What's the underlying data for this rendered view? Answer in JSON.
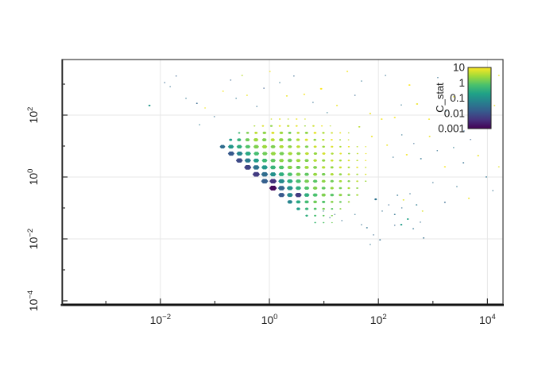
{
  "chart_data": {
    "type": "scatter",
    "subtype": "hexbin",
    "title": "",
    "xlabel": "",
    "ylabel": "",
    "x_scale": "log",
    "y_scale": "log",
    "coords": "log10",
    "grid": "major",
    "xlog_range": [
      -3.805,
      4.286
    ],
    "ylog_range": [
      -4.103,
      3.795
    ],
    "x_ticks": {
      "major_exponents": [
        -2,
        0,
        2,
        4
      ],
      "minor_exponents": [
        -3,
        -1,
        1,
        3
      ],
      "mantissa": "10"
    },
    "y_ticks": {
      "major_exponents": [
        2,
        0,
        -2,
        -4
      ],
      "minor_exponents": [
        3,
        1,
        -1,
        -3
      ],
      "mantissa": "10"
    },
    "legend": {
      "title": "C_stat",
      "labels": [
        "10",
        "1",
        "0.1",
        "0.01",
        "0.001"
      ],
      "scale": "log",
      "range": [
        0.001,
        10
      ],
      "position": "top-right-inside"
    },
    "colormap": {
      "name": "viridis",
      "stops": [
        "#440154",
        "#46327e",
        "#365c8d",
        "#277f8e",
        "#1fa187",
        "#4ac16d",
        "#a0da39",
        "#fde725"
      ]
    },
    "colors": {
      "grid": "#e7e7e7",
      "axis": "#3a3a3a",
      "tick": "#2f2f2f",
      "background": "#ffffff"
    },
    "hex_rows": [
      {
        "ly": 1.872,
        "lx0": 0.036,
        "dlx": 0.1545,
        "s": [
          1,
          1.2,
          1,
          1.2,
          1
        ],
        "c": [
          0.7,
          0.85,
          0.6,
          0.9,
          0.75
        ]
      },
      {
        "ly": 1.649,
        "lx0": -0.273,
        "dlx": 0.1545,
        "s": [
          1.2,
          1.5,
          1.8,
          1.5,
          1.8,
          1.5,
          1.2,
          1.5,
          1.2,
          1
        ],
        "c": [
          0.5,
          0.8,
          0.3,
          0.9,
          0.6,
          0.85,
          0.4,
          0.7,
          0.9,
          0.6
        ]
      },
      {
        "ly": 1.426,
        "lx0": -0.554,
        "dlx": 0.1545,
        "s": [
          1.5,
          2,
          2.2,
          2.5,
          2.2,
          2.5,
          2.2,
          2,
          2.2,
          2,
          1.8,
          1.5,
          1.2,
          1
        ],
        "c": [
          -0.3,
          0.2,
          0.6,
          0.3,
          0.8,
          0.4,
          0.1,
          0.6,
          0.3,
          0.85,
          0.5,
          0.7,
          0.9,
          0.6
        ]
      },
      {
        "ly": 1.203,
        "lx0": -0.711,
        "dlx": 0.1545,
        "s": [
          2.2,
          2.8,
          3,
          3.2,
          3,
          2.8,
          3,
          2.8,
          2.5,
          2.2,
          2,
          1.8,
          1.5,
          1.2,
          1
        ],
        "c": [
          -0.8,
          -0.4,
          0.1,
          0.4,
          0.2,
          0.6,
          0.3,
          0.1,
          0.5,
          0.8,
          0.3,
          0.6,
          0.9,
          0.4,
          0.7
        ]
      },
      {
        "ly": 0.979,
        "lx0": -0.86,
        "dlx": 0.1545,
        "s": [
          3.6,
          3.8,
          3.6,
          3.4,
          3.6,
          3.4,
          3.2,
          3,
          2.8,
          2.6,
          2.4,
          2.2,
          2,
          1.8,
          1.5,
          1.3,
          1.1,
          1
        ],
        "c": [
          -1.6,
          -0.9,
          -0.5,
          -0.1,
          0.2,
          0.4,
          0.2,
          0.5,
          0.3,
          0.6,
          0.2,
          0.7,
          0.4,
          0.8,
          0.5,
          0.9,
          0.6,
          0.8
        ]
      },
      {
        "ly": 0.756,
        "lx0": -0.701,
        "dlx": 0.1545,
        "s": [
          4.2,
          4,
          3.8,
          3.6,
          3.4,
          3.4,
          3.2,
          3,
          2.8,
          2.6,
          2.4,
          2.2,
          1.9,
          1.6,
          1.4,
          1.2,
          1
        ],
        "c": [
          -1.9,
          -1.2,
          -0.6,
          -0.2,
          0.1,
          0.35,
          0.15,
          0.45,
          0.25,
          0.6,
          0.35,
          0.75,
          0.5,
          0.85,
          0.3,
          0.65,
          0.9
        ]
      },
      {
        "ly": 0.533,
        "lx0": -0.551,
        "dlx": 0.1545,
        "s": [
          4.4,
          4.1,
          3.8,
          3.6,
          3.4,
          3.2,
          3.2,
          3,
          2.8,
          2.5,
          2.3,
          2,
          1.8,
          1.5,
          1.3,
          1.1
        ],
        "c": [
          -2.1,
          -1.4,
          -0.8,
          -0.3,
          0,
          0.3,
          0.1,
          0.4,
          0.2,
          0.55,
          0.3,
          0.7,
          0.45,
          0.8,
          0.6,
          0.9
        ]
      },
      {
        "ly": 0.31,
        "lx0": -0.397,
        "dlx": 0.1545,
        "s": [
          4.6,
          4.3,
          4,
          3.7,
          3.5,
          3.3,
          3.1,
          2.9,
          2.7,
          2.4,
          2.2,
          1.9,
          1.6,
          1.4,
          1.1
        ],
        "c": [
          -2.2,
          -1.5,
          -0.9,
          -0.4,
          -0.1,
          0.25,
          0.05,
          0.4,
          0.2,
          0.55,
          0.35,
          0.7,
          0.5,
          0.85,
          0.65
        ]
      },
      {
        "ly": 0.087,
        "lx0": -0.242,
        "dlx": 0.1545,
        "s": [
          4.7,
          4.4,
          4,
          3.7,
          3.4,
          3.2,
          3,
          2.8,
          2.5,
          2.3,
          2,
          1.7,
          1.4,
          1.2
        ],
        "c": [
          -2.3,
          -1.6,
          -1,
          -0.5,
          -0.15,
          0.2,
          0,
          0.35,
          0.15,
          0.5,
          0.3,
          0.65,
          0.45,
          0.8
        ]
      },
      {
        "ly": -0.136,
        "lx0": -0.087,
        "dlx": 0.1545,
        "s": [
          4.5,
          4.6,
          4.1,
          3.8,
          3.5,
          3.2,
          3,
          2.7,
          2.4,
          2.1,
          1.8,
          1.5,
          1.2
        ],
        "c": [
          -1.8,
          -2.4,
          -1.1,
          -0.55,
          -0.2,
          0.15,
          -0.05,
          0.3,
          0.1,
          0.45,
          0.25,
          0.6,
          0.4
        ]
      },
      {
        "ly": -0.359,
        "lx0": 0.067,
        "dlx": 0.1545,
        "s": [
          4.8,
          4.4,
          4,
          3.6,
          3.3,
          3,
          2.7,
          2.4,
          2.1,
          1.8,
          1.5
        ],
        "c": [
          -2.9,
          -1.7,
          -1,
          -0.5,
          -0.1,
          0.2,
          0,
          0.35,
          0.15,
          0.5,
          0.3
        ]
      },
      {
        "ly": -0.582,
        "lx0": 0.222,
        "dlx": 0.1545,
        "s": [
          4.2,
          3.9,
          4.3,
          3.5,
          3.2,
          2.9,
          2.6,
          2.3,
          2,
          1.6
        ],
        "c": [
          -1.9,
          -1.1,
          -2.3,
          -0.5,
          -0.15,
          0.2,
          -0.05,
          0.3,
          0.1,
          0.45
        ]
      },
      {
        "ly": -0.805,
        "lx0": 0.376,
        "dlx": 0.1545,
        "s": [
          3.4,
          3.1,
          2.9,
          2.6,
          2.3,
          2,
          1.7,
          1.4
        ],
        "c": [
          -1.2,
          -0.6,
          -0.25,
          0.1,
          -0.1,
          0.25,
          0.05,
          0.4
        ]
      },
      {
        "ly": -1.028,
        "lx0": 0.531,
        "dlx": 0.1545,
        "s": [
          2.6,
          2.4,
          2.1,
          1.9,
          1.6,
          1.3
        ],
        "c": [
          -0.8,
          -0.4,
          -0.1,
          0.15,
          -0.05,
          0.3
        ]
      },
      {
        "ly": -1.251,
        "lx0": 0.685,
        "dlx": 0.1545,
        "s": [
          1.8,
          1.6,
          1.4,
          1.2
        ],
        "c": [
          -0.5,
          -0.2,
          0,
          0.2
        ]
      },
      {
        "ly": -1.474,
        "lx0": 0.84,
        "dlx": 0.1545,
        "s": [
          1.3,
          1.2,
          1
        ],
        "c": [
          -0.3,
          -0.1,
          0.1
        ]
      }
    ],
    "points": [
      [
        -2.2,
        2.31,
        1.5,
        -0.9
      ],
      [
        -1.92,
        3.05,
        0.9,
        -1.7
      ],
      [
        -1.82,
        2.92,
        0.9,
        -1.6
      ],
      [
        -1.71,
        3.26,
        0.9,
        -1.8
      ],
      [
        -1.53,
        2.54,
        0.9,
        -1.5
      ],
      [
        -1.33,
        2.38,
        1.1,
        -1.7
      ],
      [
        -1.28,
        1.69,
        0.9,
        -1.4
      ],
      [
        -1.18,
        2.23,
        1.0,
        0.9
      ],
      [
        -1.01,
        1.95,
        0.9,
        -1.6
      ],
      [
        -0.85,
        2.77,
        1.1,
        0.95
      ],
      [
        -0.71,
        3.13,
        0.9,
        -1.8
      ],
      [
        -0.61,
        2.54,
        0.9,
        -1.5
      ],
      [
        -0.5,
        3.28,
        1.1,
        0.6
      ],
      [
        -0.41,
        2.64,
        1.1,
        0.9
      ],
      [
        -0.23,
        2.28,
        0.9,
        -1.6
      ],
      [
        -0.1,
        2.87,
        0.9,
        -1.9
      ],
      [
        0.01,
        3.41,
        1.1,
        0.95
      ],
      [
        0.19,
        3.05,
        0.9,
        -1.5
      ],
      [
        0.32,
        2.62,
        1.2,
        0.9
      ],
      [
        0.45,
        3.26,
        0.9,
        -1.7
      ],
      [
        0.64,
        2.67,
        1.3,
        0.95
      ],
      [
        0.95,
        2.85,
        1.6,
        1.0
      ],
      [
        0.8,
        2.41,
        0.9,
        -1.6
      ],
      [
        1.06,
        2.08,
        0.9,
        -1.4
      ],
      [
        1.24,
        2.31,
        1.2,
        0.9
      ],
      [
        1.43,
        3.41,
        1.2,
        0.95
      ],
      [
        1.57,
        2.64,
        0.9,
        -1.7
      ],
      [
        1.69,
        3.1,
        0.9,
        -1.5
      ],
      [
        1.85,
        2.05,
        1.3,
        0.9
      ],
      [
        2.13,
        3.28,
        0.9,
        -1.6
      ],
      [
        2.3,
        1.92,
        1.3,
        0.95
      ],
      [
        2.42,
        2.33,
        0.9,
        -1.5
      ],
      [
        2.57,
        2.97,
        1.4,
        1.0
      ],
      [
        2.71,
        2.36,
        1.4,
        0.9
      ],
      [
        2.93,
        1.87,
        1.2,
        0.95
      ],
      [
        3.09,
        3.21,
        0.9,
        -1.6
      ],
      [
        3.24,
        2.13,
        0.9,
        -1.4
      ],
      [
        3.38,
        2.59,
        1.1,
        0.9
      ],
      [
        3.57,
        1.49,
        0.9,
        -1.7
      ],
      [
        3.8,
        2.69,
        1.3,
        0.95
      ],
      [
        3.98,
        1.87,
        0.9,
        -1.5
      ],
      [
        4.13,
        2.31,
        1.1,
        0.85
      ],
      [
        4.21,
        3.28,
        1.1,
        0.9
      ],
      [
        1.65,
        1.62,
        1.4,
        0.6
      ],
      [
        1.88,
        1.31,
        1.3,
        0.9
      ],
      [
        2.06,
        1.87,
        1.3,
        0.95
      ],
      [
        2.16,
        1.03,
        1.2,
        0.9
      ],
      [
        2.27,
        0.64,
        0.9,
        -1.6
      ],
      [
        2.43,
        1.36,
        0.9,
        -1.5
      ],
      [
        2.52,
        0.72,
        1.3,
        0.95
      ],
      [
        2.65,
        1.08,
        0.9,
        -1.7
      ],
      [
        2.78,
        0.59,
        1.1,
        -1.5
      ],
      [
        2.94,
        1.31,
        1.2,
        0.9
      ],
      [
        3.08,
        0.85,
        0.9,
        -1.6
      ],
      [
        3.22,
        0.33,
        1.3,
        0.95
      ],
      [
        3.38,
        0.95,
        0.9,
        -1.4
      ],
      [
        3.56,
        0.46,
        1.1,
        -1.6
      ],
      [
        3.69,
        1.21,
        0.9,
        -1.8
      ],
      [
        3.83,
        0.69,
        1.3,
        0.9
      ],
      [
        3.98,
        0.0,
        1.1,
        -1.5
      ],
      [
        4.1,
        -0.44,
        0.9,
        -1.6
      ],
      [
        4.21,
        0.33,
        1.1,
        0.85
      ],
      [
        3.66,
        -0.69,
        1.2,
        0.9
      ],
      [
        3.44,
        -0.31,
        0.9,
        -1.5
      ],
      [
        3.22,
        -0.82,
        1.1,
        -1.7
      ],
      [
        3.0,
        -0.18,
        0.9,
        -1.6
      ],
      [
        2.35,
        -0.59,
        1.1,
        -1.5
      ],
      [
        2.46,
        -0.74,
        1.2,
        0.85
      ],
      [
        2.58,
        -0.54,
        0.9,
        -1.6
      ],
      [
        2.7,
        -0.9,
        1.1,
        -1.4
      ],
      [
        2.81,
        -1.1,
        1.1,
        0.8
      ],
      [
        2.43,
        -1.0,
        0.9,
        -1.6
      ],
      [
        2.3,
        -1.21,
        1.1,
        -1.5
      ],
      [
        2.54,
        -1.36,
        1.4,
        -0.7
      ],
      [
        2.42,
        -1.54,
        1.5,
        -0.8
      ],
      [
        2.64,
        -1.67,
        1.1,
        -1.5
      ],
      [
        2.77,
        -1.46,
        0.9,
        -1.6
      ],
      [
        2.19,
        -0.9,
        0.9,
        -1.7
      ],
      [
        1.95,
        -0.72,
        1.7,
        -1.5
      ],
      [
        2.07,
        -1.1,
        0.9,
        -1.6
      ],
      [
        1.69,
        -1.54,
        0.9,
        -1.6
      ],
      [
        1.79,
        -1.64,
        1.1,
        -1.5
      ],
      [
        1.91,
        -1.87,
        0.9,
        -1.7
      ],
      [
        2.03,
        -2.03,
        1.1,
        -1.6
      ],
      [
        1.85,
        -2.18,
        0.9,
        -1.5
      ],
      [
        2.3,
        -1.56,
        0.9,
        -1.7
      ],
      [
        2.83,
        -1.97,
        1.1,
        -1.6
      ],
      [
        1.57,
        -1.21,
        0.9,
        -1.5
      ],
      [
        1.33,
        -1.41,
        0.9,
        -1.6
      ],
      [
        1.2,
        -1.21,
        0.9,
        -1.7
      ],
      [
        0.99,
        -1.1,
        0.9,
        -1.5
      ],
      [
        1.11,
        -1.31,
        0.9,
        -1.6
      ]
    ]
  }
}
